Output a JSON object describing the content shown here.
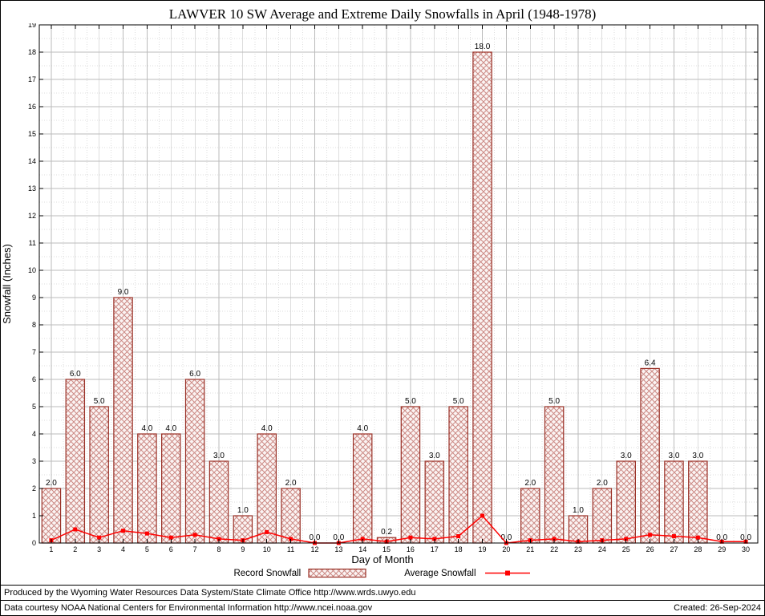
{
  "chart_data": {
    "type": "bar",
    "title": "LAWVER 10 SW Average and Extreme Daily Snowfalls in April (1948-1978)",
    "xlabel": "Day of Month",
    "ylabel": "Snowfall (Inches)",
    "ylim": [
      0,
      19
    ],
    "y_tick_step": 1,
    "grid": true,
    "legend_position": "bottom",
    "categories": [
      1,
      2,
      3,
      4,
      5,
      6,
      7,
      8,
      9,
      10,
      11,
      12,
      13,
      14,
      15,
      16,
      17,
      18,
      19,
      20,
      21,
      22,
      23,
      24,
      25,
      26,
      27,
      28,
      29,
      30
    ],
    "series": [
      {
        "name": "Record Snowfall",
        "type": "bar",
        "values": [
          2.0,
          6.0,
          5.0,
          9.0,
          4.0,
          4.0,
          6.0,
          3.0,
          1.0,
          4.0,
          2.0,
          0.0,
          0.0,
          4.0,
          0.2,
          5.0,
          3.0,
          5.0,
          18.0,
          0.0,
          2.0,
          5.0,
          1.0,
          2.0,
          3.0,
          6.4,
          3.0,
          3.0,
          0.0,
          0.0
        ]
      },
      {
        "name": "Average Snowfall",
        "type": "line",
        "values": [
          0.1,
          0.5,
          0.2,
          0.45,
          0.35,
          0.2,
          0.3,
          0.15,
          0.1,
          0.4,
          0.15,
          0.0,
          0.0,
          0.15,
          0.05,
          0.2,
          0.15,
          0.25,
          1.0,
          0.0,
          0.1,
          0.15,
          0.05,
          0.1,
          0.15,
          0.3,
          0.25,
          0.2,
          0.05,
          0.05
        ]
      }
    ],
    "colors": {
      "bar_border": "#993026",
      "bar_hatch": "#cc8a85",
      "bar_fill_bg": "#fbf4f3",
      "line": "#ff0000",
      "grid_major": "#bbbbbb",
      "grid_minor": "#dddddd",
      "axis": "#000000"
    }
  },
  "legend": {
    "record_label": "Record Snowfall",
    "average_label": "Average Snowfall"
  },
  "footer": {
    "line1": "Produced by the Wyoming Water Resources Data System/State Climate Office http://www.wrds.uwyo.edu",
    "line2": "Data courtesy NOAA National Centers for Environmental Information http://www.ncei.noaa.gov",
    "created": "Created: 26-Sep-2024"
  }
}
